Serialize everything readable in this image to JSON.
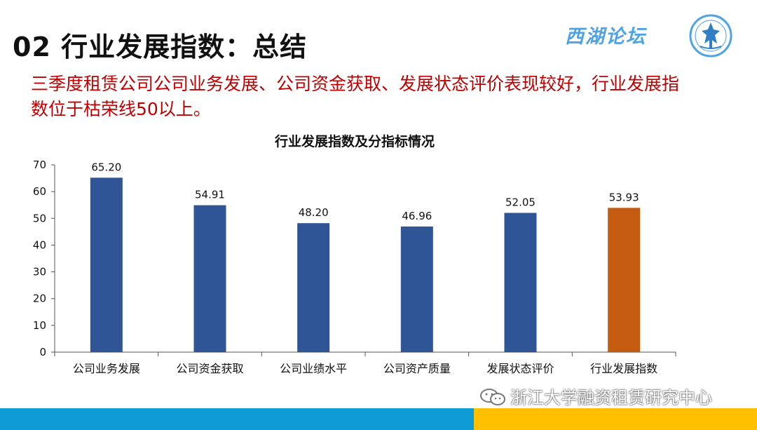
{
  "header": {
    "title": "02 行业发展指数：总结",
    "brand": "西湖论坛"
  },
  "summary": "三季度租赁公司公司业务发展、公司资金获取、发展状态评价表现较好，行业发展指数位于枯荣线50以上。",
  "footer": {
    "credit": "浙江大学融资租赁研究中心"
  },
  "colors": {
    "bar_primary": "#2f5597",
    "bar_highlight": "#c55a11",
    "summary_text": "#c00000",
    "footer_blue": "#0e9bd6",
    "footer_gold": "#ffc000"
  },
  "chart_data": {
    "type": "bar",
    "title": "行业发展指数及分指标情况",
    "categories": [
      "公司业务发展",
      "公司资金获取",
      "公司业绩水平",
      "公司资产质量",
      "发展状态评价",
      "行业发展指数"
    ],
    "values": [
      65.2,
      54.91,
      48.2,
      46.96,
      52.05,
      53.93
    ],
    "data_labels": [
      "65.20",
      "54.91",
      "48.20",
      "46.96",
      "52.05",
      "53.93"
    ],
    "highlight_index": 5,
    "ylim": [
      0,
      70
    ],
    "yticks": [
      0,
      10,
      20,
      30,
      40,
      50,
      60,
      70
    ],
    "xlabel": "",
    "ylabel": "",
    "grid": false,
    "legend": "none"
  }
}
